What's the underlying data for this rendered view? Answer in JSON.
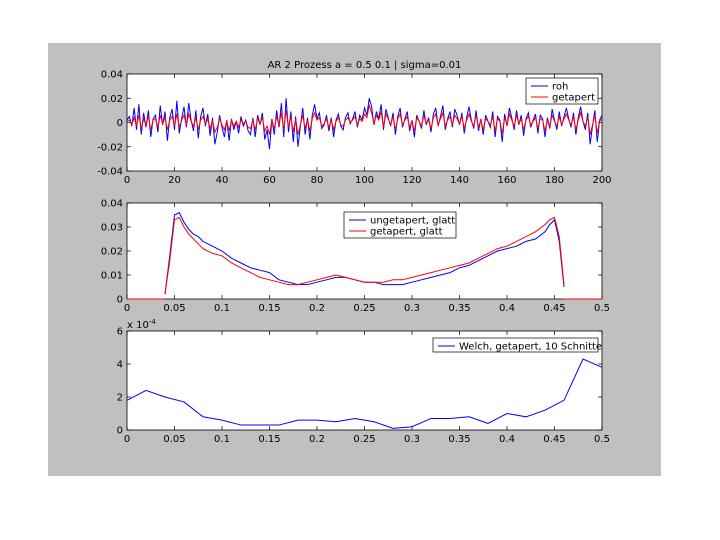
{
  "figure": {
    "background": "#ffffff",
    "panel_color": "#c0c0c0",
    "axes_color": "#ffffff"
  },
  "chart_data": [
    {
      "type": "line",
      "title": "AR 2 Prozess      a = 0.5       0.1     |     sigma=0.01",
      "xlim": [
        0,
        200
      ],
      "ylim": [
        -0.04,
        0.04
      ],
      "xticks": [
        0,
        20,
        40,
        60,
        80,
        100,
        120,
        140,
        160,
        180,
        200
      ],
      "yticks": [
        -0.04,
        -0.02,
        0,
        0.02,
        0.04
      ],
      "ytick_labels": [
        "-0.04",
        "-0.02",
        "0",
        "0.02",
        "0.04"
      ],
      "legend": {
        "placement": "top-right",
        "entries": [
          "roh",
          "getapert"
        ]
      },
      "series": [
        {
          "name": "roh",
          "color": "#0000ff",
          "values": [
            0.002,
            0.005,
            -0.003,
            0.012,
            -0.006,
            0.015,
            -0.01,
            0.008,
            -0.004,
            0.01,
            -0.012,
            0.003,
            0.006,
            -0.008,
            0.014,
            -0.002,
            0.009,
            -0.015,
            0.004,
            0.011,
            -0.006,
            0.018,
            -0.009,
            0.003,
            0.013,
            -0.004,
            0.016,
            0.002,
            -0.007,
            0.01,
            -0.013,
            0.005,
            0.012,
            -0.003,
            0.007,
            -0.011,
            0.004,
            -0.018,
            -0.008,
            0.006,
            -0.004,
            -0.012,
            0.002,
            -0.015,
            0.003,
            -0.006,
            0.001,
            -0.009,
            0.005,
            -0.003,
            0.002,
            -0.007,
            -0.01,
            0.004,
            -0.012,
            0.006,
            -0.002,
            0.008,
            -0.014,
            -0.006,
            -0.022,
            0.003,
            -0.01,
            0.01,
            -0.004,
            0.016,
            -0.012,
            0.02,
            -0.008,
            0.009,
            -0.016,
            0.005,
            -0.02,
            -0.003,
            0.012,
            -0.01,
            0.004,
            -0.014,
            0.006,
            0.015,
            0.003,
            0.008,
            -0.005,
            -0.002,
            0.006,
            -0.007,
            0.004,
            -0.012,
            0.002,
            0.007,
            -0.003,
            -0.006,
            0.004,
            0.008,
            -0.001,
            0.003,
            0.009,
            -0.004,
            0.006,
            0.002,
            0.012,
            0.006,
            0.02,
            0.013,
            -0.002,
            0.009,
            0.003,
            0.015,
            -0.006,
            0.011,
            0.004,
            -0.003,
            0.008,
            -0.01,
            0.005,
            0.012,
            -0.004,
            0.003,
            0.009,
            -0.007,
            0.002,
            -0.012,
            0.006,
            0.001,
            -0.005,
            0.01,
            -0.002,
            0.004,
            -0.008,
            0.007,
            0.012,
            -0.003,
            0.005,
            0.014,
            -0.006,
            0.003,
            0.009,
            -0.004,
            0.011,
            0.006,
            -0.002,
            0.008,
            -0.009,
            0.004,
            0.013,
            0.002,
            -0.005,
            0.01,
            -0.007,
            0.003,
            -0.01,
            0.006,
            0.001,
            -0.004,
            0.009,
            -0.012,
            0.005,
            0.002,
            -0.016,
            0.007,
            -0.003,
            0.012,
            0.004,
            -0.006,
            0.01,
            -0.002,
            0.006,
            -0.011,
            0.003,
            0.008,
            -0.004,
            0.002,
            0.007,
            -0.009,
            0.006,
            0.003,
            -0.012,
            0.004,
            -0.005,
            0.011,
            0.002,
            -0.006,
            0.009,
            -0.003,
            0.005,
            0.012,
            0.003,
            -0.004,
            0.008,
            -0.01,
            0.004,
            0.013,
            0.001,
            -0.006,
            0.008,
            -0.018,
            -0.003,
            0.01,
            -0.016,
            0.002,
            0.006
          ]
        },
        {
          "name": "getapert",
          "color": "#ff0000",
          "values": [
            0.001,
            0.002,
            -0.002,
            0.004,
            -0.003,
            0.006,
            -0.005,
            0.003,
            -0.002,
            0.005,
            -0.006,
            0.002,
            0.003,
            -0.004,
            0.006,
            -0.001,
            0.004,
            -0.006,
            0.002,
            0.005,
            -0.003,
            0.007,
            -0.004,
            0.002,
            0.006,
            -0.002,
            0.007,
            0.001,
            -0.003,
            0.004,
            -0.006,
            0.002,
            0.005,
            -0.001,
            0.003,
            -0.005,
            0.002,
            -0.008,
            -0.004,
            0.003,
            -0.002,
            -0.006,
            0.001,
            -0.007,
            0.002,
            -0.003,
            0.001,
            -0.004,
            0.002,
            -0.001,
            0.001,
            -0.004,
            -0.005,
            0.002,
            -0.006,
            0.003,
            -0.001,
            0.004,
            -0.007,
            -0.003,
            -0.01,
            0.002,
            -0.005,
            0.005,
            -0.002,
            0.008,
            -0.006,
            0.01,
            -0.004,
            0.005,
            -0.008,
            0.003,
            -0.01,
            -0.002,
            0.006,
            -0.005,
            0.002,
            -0.007,
            0.003,
            0.008,
            0.002,
            0.004,
            -0.003,
            -0.001,
            0.003,
            -0.004,
            0.002,
            -0.006,
            0.001,
            0.004,
            -0.002,
            -0.003,
            0.002,
            0.004,
            0,
            0.002,
            0.005,
            -0.002,
            0.003,
            0.001,
            0.007,
            0.004,
            0.014,
            0.008,
            -0.001,
            0.006,
            0.002,
            0.009,
            -0.004,
            0.007,
            0.003,
            -0.002,
            0.005,
            -0.006,
            0.003,
            0.007,
            -0.002,
            0.002,
            0.005,
            -0.004,
            0.001,
            -0.007,
            0.004,
            0.001,
            -0.003,
            0.006,
            -0.001,
            0.002,
            -0.005,
            0.004,
            0.007,
            -0.002,
            0.003,
            0.008,
            -0.003,
            0.002,
            0.005,
            -0.002,
            0.006,
            0.003,
            -0.001,
            0.005,
            -0.005,
            0.002,
            0.007,
            0.001,
            -0.003,
            0.006,
            -0.004,
            0.002,
            -0.006,
            0.003,
            0.001,
            -0.002,
            0.005,
            -0.007,
            0.003,
            0.001,
            -0.009,
            0.004,
            -0.002,
            0.007,
            0.002,
            -0.003,
            0.006,
            -0.001,
            0.003,
            -0.006,
            0.002,
            0.005,
            -0.002,
            0.001,
            0.004,
            -0.005,
            0.003,
            0.002,
            -0.007,
            0.002,
            -0.003,
            0.006,
            0.001,
            -0.003,
            0.005,
            -0.002,
            0.003,
            0.007,
            0.002,
            -0.002,
            0.005,
            -0.006,
            0.002,
            0.008,
            0.001,
            -0.003,
            0.005,
            -0.01,
            -0.002,
            0.006,
            -0.009,
            0.001,
            0.003
          ]
        }
      ]
    },
    {
      "type": "line",
      "xlim": [
        0,
        0.5
      ],
      "ylim": [
        0,
        0.04
      ],
      "xticks": [
        0,
        0.05,
        0.1,
        0.15,
        0.2,
        0.25,
        0.3,
        0.35,
        0.4,
        0.45,
        0.5
      ],
      "yticks": [
        0,
        0.01,
        0.02,
        0.03,
        0.04
      ],
      "ytick_labels": [
        "0",
        "0.01",
        "0.02",
        "0.03",
        "0.04"
      ],
      "legend": {
        "placement": "top-right",
        "entries": [
          "ungetapert, glatt",
          "getapert, glatt"
        ]
      },
      "series": [
        {
          "name": "ungetapert, glatt",
          "color": "#0000ff",
          "x": [
            0.04,
            0.045,
            0.05,
            0.055,
            0.06,
            0.065,
            0.07,
            0.075,
            0.08,
            0.09,
            0.1,
            0.11,
            0.12,
            0.13,
            0.14,
            0.15,
            0.16,
            0.17,
            0.18,
            0.19,
            0.2,
            0.21,
            0.22,
            0.23,
            0.24,
            0.25,
            0.26,
            0.27,
            0.28,
            0.29,
            0.3,
            0.31,
            0.32,
            0.33,
            0.34,
            0.35,
            0.36,
            0.37,
            0.38,
            0.39,
            0.4,
            0.41,
            0.42,
            0.43,
            0.44,
            0.445,
            0.45,
            0.455,
            0.46
          ],
          "values": [
            0.002,
            0.018,
            0.035,
            0.036,
            0.032,
            0.029,
            0.027,
            0.026,
            0.024,
            0.022,
            0.02,
            0.017,
            0.015,
            0.013,
            0.012,
            0.011,
            0.008,
            0.007,
            0.006,
            0.006,
            0.007,
            0.008,
            0.009,
            0.009,
            0.008,
            0.007,
            0.007,
            0.006,
            0.006,
            0.006,
            0.007,
            0.008,
            0.009,
            0.01,
            0.011,
            0.013,
            0.014,
            0.016,
            0.018,
            0.02,
            0.021,
            0.022,
            0.024,
            0.025,
            0.028,
            0.031,
            0.033,
            0.024,
            0.005
          ]
        },
        {
          "name": "getapert, glatt",
          "color": "#ff0000",
          "x": [
            0.04,
            0.045,
            0.05,
            0.055,
            0.06,
            0.065,
            0.07,
            0.075,
            0.08,
            0.09,
            0.1,
            0.11,
            0.12,
            0.13,
            0.14,
            0.15,
            0.16,
            0.17,
            0.18,
            0.19,
            0.2,
            0.21,
            0.22,
            0.23,
            0.24,
            0.25,
            0.26,
            0.27,
            0.28,
            0.29,
            0.3,
            0.31,
            0.32,
            0.33,
            0.34,
            0.35,
            0.36,
            0.37,
            0.38,
            0.39,
            0.4,
            0.41,
            0.42,
            0.43,
            0.44,
            0.445,
            0.45,
            0.455,
            0.46
          ],
          "values": [
            0.002,
            0.016,
            0.033,
            0.034,
            0.03,
            0.027,
            0.025,
            0.023,
            0.021,
            0.019,
            0.018,
            0.015,
            0.013,
            0.011,
            0.009,
            0.008,
            0.007,
            0.006,
            0.006,
            0.007,
            0.008,
            0.009,
            0.01,
            0.009,
            0.008,
            0.007,
            0.007,
            0.007,
            0.008,
            0.008,
            0.009,
            0.01,
            0.011,
            0.012,
            0.013,
            0.014,
            0.015,
            0.017,
            0.019,
            0.021,
            0.022,
            0.024,
            0.026,
            0.028,
            0.031,
            0.033,
            0.034,
            0.026,
            0.006
          ]
        }
      ]
    },
    {
      "type": "line",
      "xlim": [
        0,
        0.5
      ],
      "ylim": [
        0,
        6
      ],
      "xticks": [
        0,
        0.05,
        0.1,
        0.15,
        0.2,
        0.25,
        0.3,
        0.35,
        0.4,
        0.45,
        0.5
      ],
      "yticks": [
        0,
        2,
        4,
        6
      ],
      "ytick_labels": [
        "0",
        "2",
        "4",
        "6"
      ],
      "ymultiplier": "x 10",
      "ymultiplier_exp": "-4",
      "legend": {
        "placement": "top-right",
        "entries": [
          "Welch, getapert, 10 Schnitte"
        ]
      },
      "series": [
        {
          "name": "Welch, getapert, 10 Schnitte",
          "color": "#0000ff",
          "x": [
            0,
            0.02,
            0.04,
            0.06,
            0.08,
            0.1,
            0.12,
            0.14,
            0.16,
            0.18,
            0.2,
            0.22,
            0.24,
            0.26,
            0.28,
            0.3,
            0.32,
            0.34,
            0.36,
            0.38,
            0.4,
            0.42,
            0.44,
            0.46,
            0.48,
            0.5
          ],
          "values": [
            1.8,
            2.4,
            2.0,
            1.7,
            0.8,
            0.6,
            0.3,
            0.3,
            0.3,
            0.6,
            0.6,
            0.5,
            0.7,
            0.5,
            0.1,
            0.2,
            0.7,
            0.7,
            0.8,
            0.4,
            1.0,
            0.8,
            1.2,
            1.8,
            4.3,
            3.8
          ]
        }
      ]
    }
  ]
}
